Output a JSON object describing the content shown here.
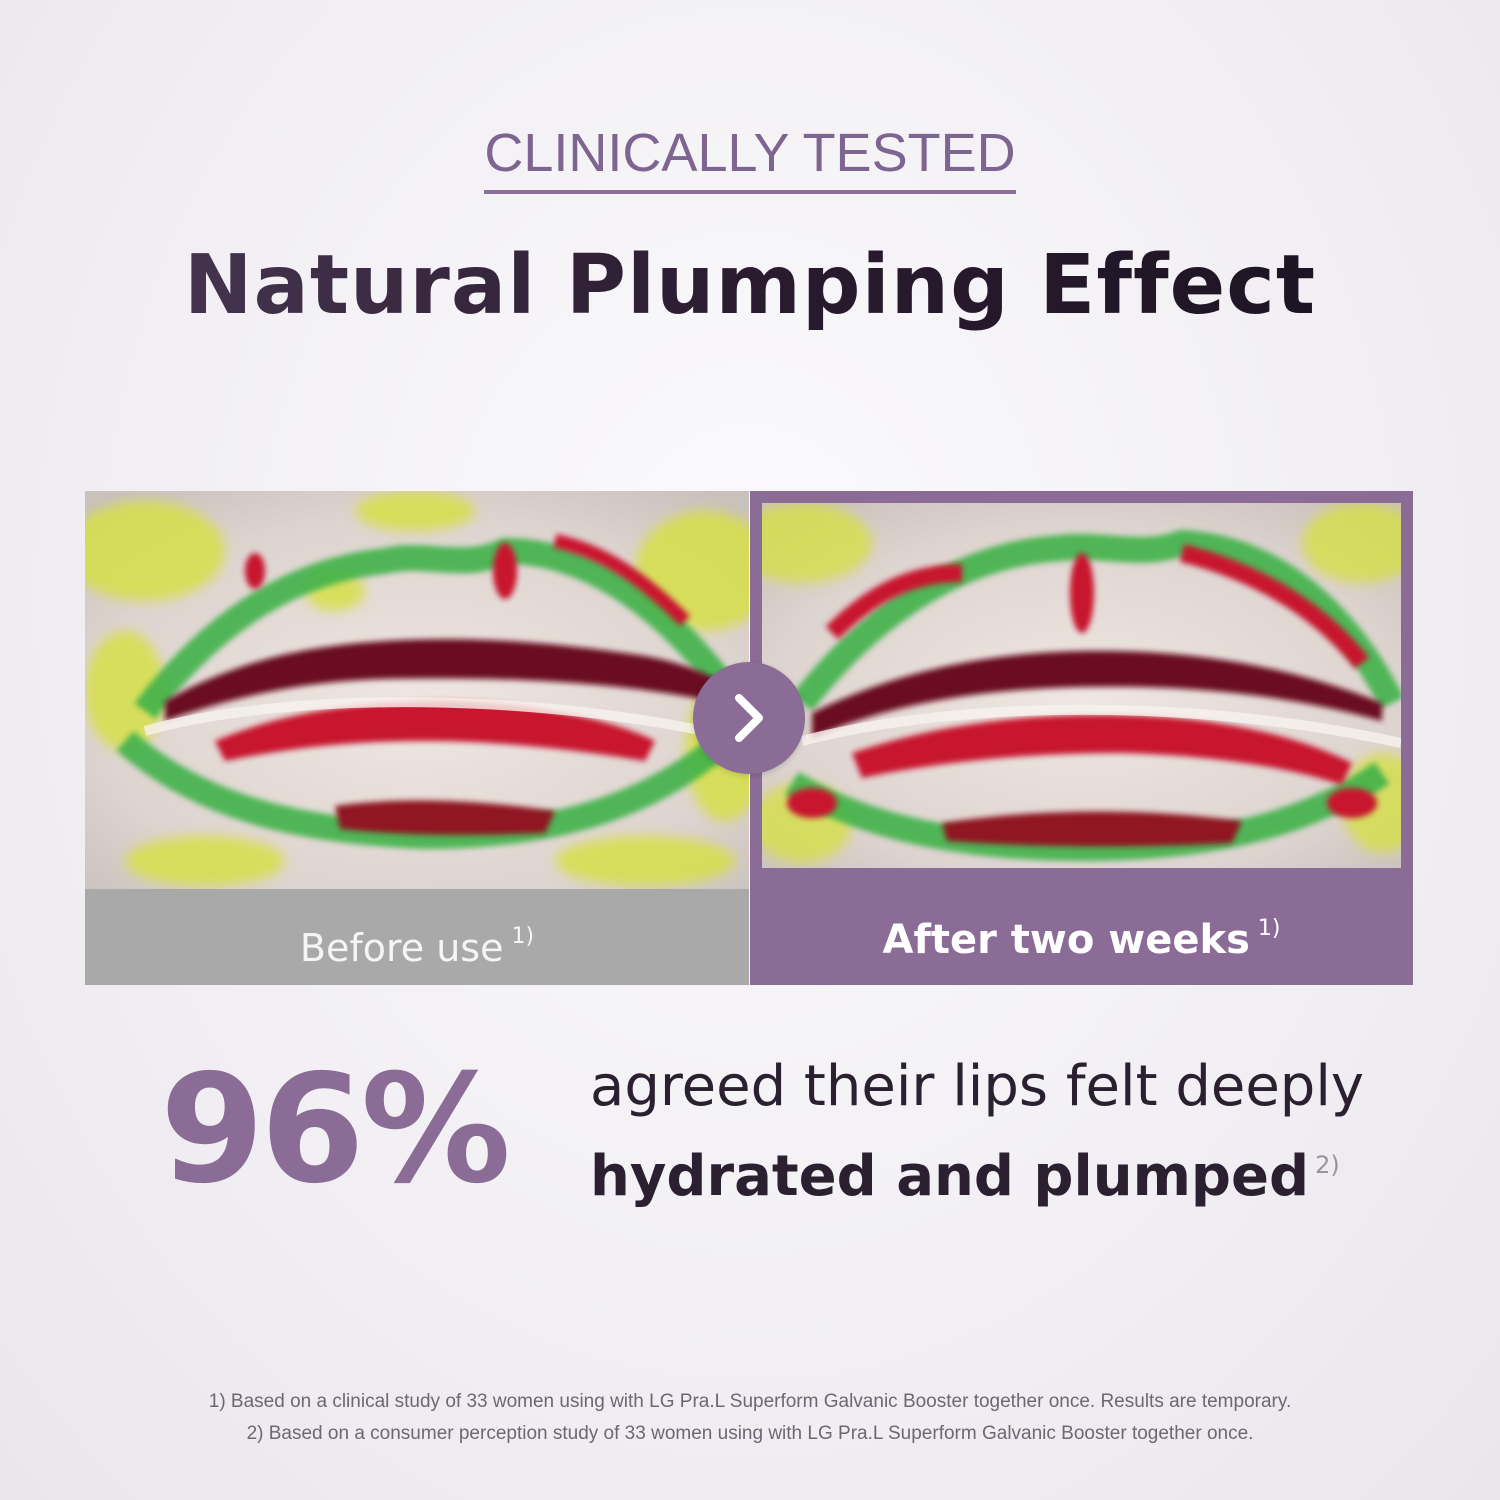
{
  "header": {
    "eyebrow": "CLINICALLY TESTED",
    "headline": "Natural Plumping Effect"
  },
  "comparison": {
    "before_label": "Before use",
    "before_footnote": "1)",
    "after_label": "After two weeks",
    "after_footnote": "1)",
    "arrow_icon": "chevron-right-icon"
  },
  "stat": {
    "value": "96%",
    "line1": "agreed their lips felt deeply",
    "line2": "hydrated and plumped",
    "footnote": "2)"
  },
  "footnotes": [
    "1) Based on a clinical study of 33 women using with LG Pra.L Superform Galvanic Booster together once. Results are temporary.",
    "2) Based on a consumer perception study of 33 women using with LG Pra.L Superform Galvanic Booster together once."
  ],
  "colors": {
    "accent": "#8a6c97",
    "before_bar": "#a9a9a9",
    "heat_red": "#b3122e",
    "heat_green": "#3fb24a",
    "heat_yellow": "#d9e34a"
  }
}
